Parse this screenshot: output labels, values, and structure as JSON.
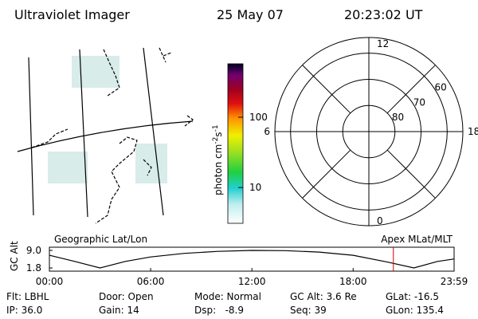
{
  "header": {
    "title": "Ultraviolet Imager",
    "date": "25 May 07",
    "time": "20:23:02 UT"
  },
  "colorbar": {
    "label_parts": [
      "photon cm",
      "-2",
      "s",
      "-1"
    ],
    "log": true,
    "lim": [
      3.1,
      575
    ],
    "ticks": [
      10,
      100
    ]
  },
  "polar": {
    "rlim": [
      90,
      54
    ],
    "rings": [
      80,
      70,
      60
    ],
    "hours": [
      {
        "value": 12,
        "label": "12"
      },
      {
        "value": 6,
        "label": "6"
      },
      {
        "value": 18,
        "label": "18"
      },
      {
        "value": 0,
        "label": "0"
      }
    ]
  },
  "chart_data": {
    "type": "line",
    "left_label": "Geographic Lat/Lon",
    "right_label": "Apex MLat/MLT",
    "ylabel": "GC Alt",
    "x": [
      0,
      1.5,
      3,
      4.5,
      6,
      8,
      10,
      12,
      14,
      16,
      18,
      20,
      21.6,
      23,
      24
    ],
    "values": [
      7.0,
      4.5,
      1.8,
      4.5,
      6.3,
      7.8,
      8.6,
      9.0,
      8.9,
      8.3,
      7.0,
      4.3,
      1.8,
      4.5,
      5.5
    ],
    "color": "#000000",
    "marker_x": 20.384,
    "marker_color": "#d00000",
    "xlim": [
      0,
      23.983
    ],
    "xticks": [
      {
        "value": 0,
        "label": "00:00"
      },
      {
        "value": 6,
        "label": "06:00"
      },
      {
        "value": 12,
        "label": "12:00"
      },
      {
        "value": 18,
        "label": "18:00"
      },
      {
        "value": 23.983,
        "label": "23:59"
      }
    ],
    "ylim": [
      0.5,
      10.3
    ],
    "yticks": [
      {
        "value": 9.0,
        "label": "9.0"
      },
      {
        "value": 1.8,
        "label": "1.8"
      }
    ]
  },
  "footer": {
    "rows": [
      [
        "Flt: LBHL",
        "Door: Open",
        "Mode: Normal",
        "GC Alt: 3.6 Re",
        "GLat: -16.5"
      ],
      [
        "IP: 36.0",
        "Gain: 14",
        "Dsp:   -8.9",
        "Seq: 39",
        "GLon: 135.4"
      ]
    ]
  }
}
